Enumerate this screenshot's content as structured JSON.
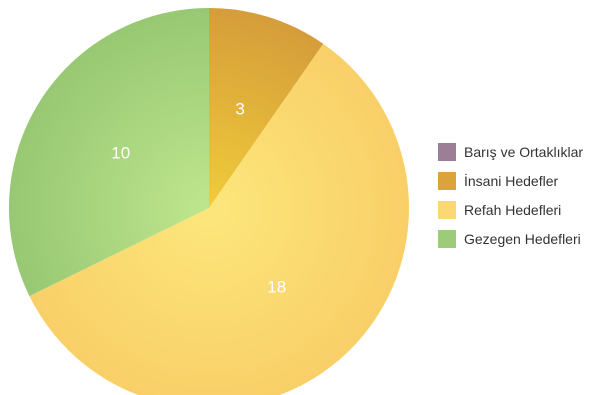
{
  "chart_data": {
    "type": "pie",
    "categories": [
      "Barış ve Ortaklıklar",
      "İnsani Hedefler",
      "Refah Hedefleri",
      "Gezegen Hedefleri"
    ],
    "values": [
      0,
      3,
      18,
      10
    ],
    "value_labels": [
      "",
      "3",
      "18",
      "10"
    ],
    "colors": [
      "#9c7f96",
      "#d9a53a",
      "#fbd776",
      "#9ccc7a"
    ],
    "legend_position": "right"
  }
}
